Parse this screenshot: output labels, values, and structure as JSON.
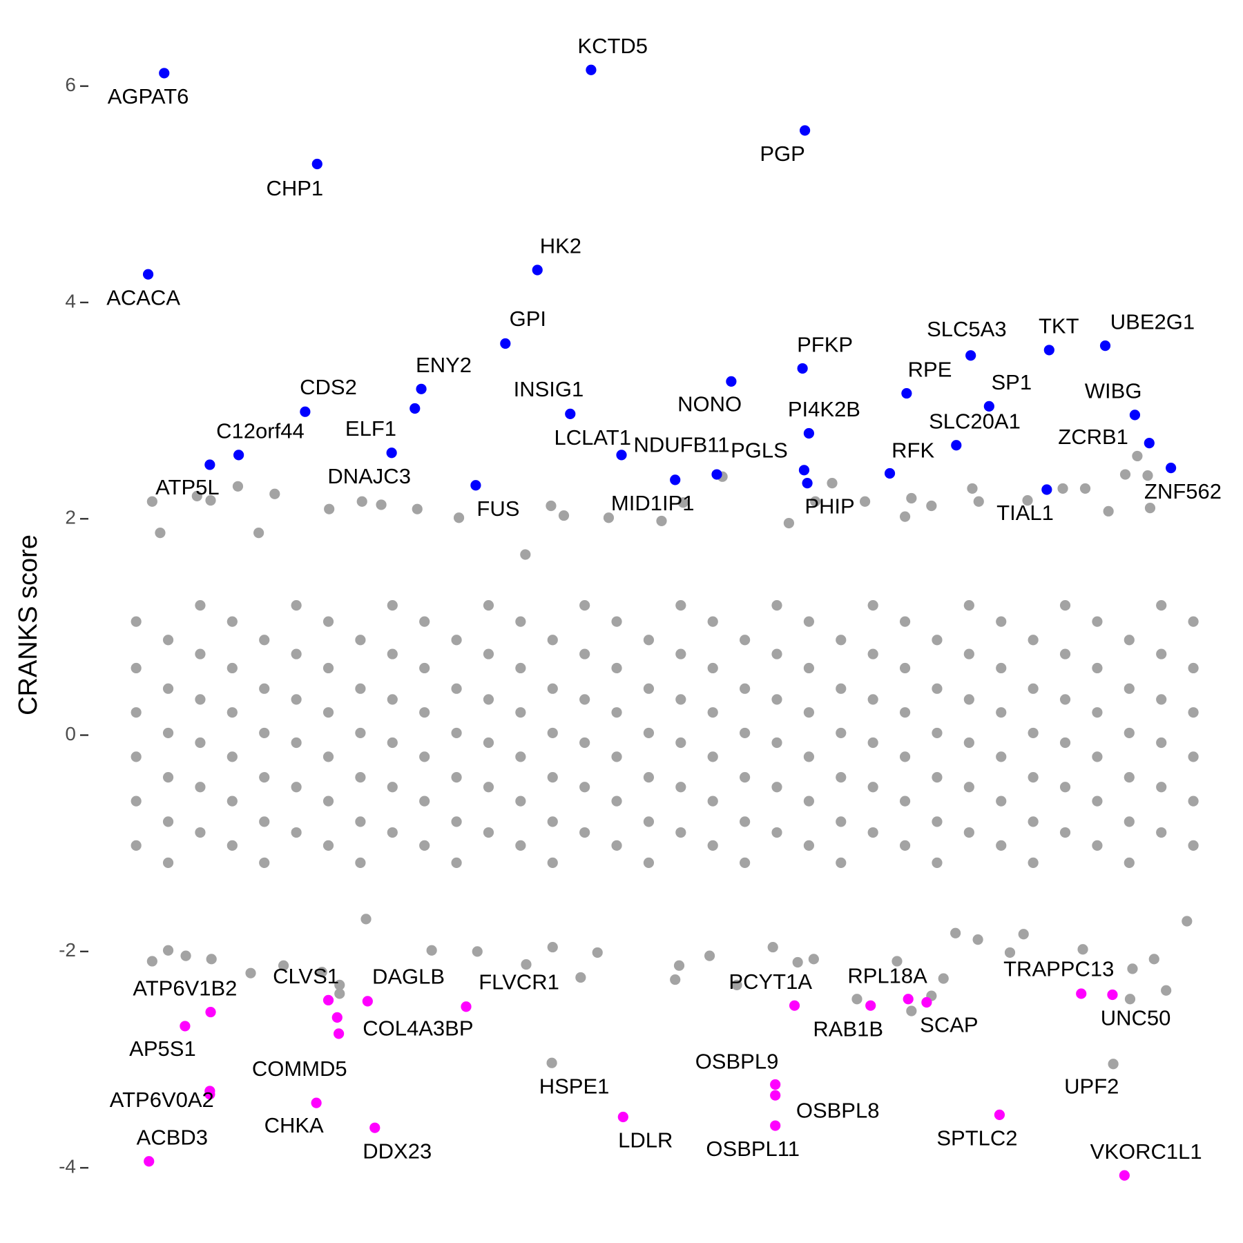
{
  "chart_data": {
    "type": "scatter",
    "y_label": "CRANKS score",
    "xlim": [
      0,
      1400
    ],
    "ylim": [
      -4.31,
      6.5
    ],
    "yticks": [
      -4,
      -2,
      0,
      2,
      4,
      6
    ],
    "series": [
      {
        "color": "#a3a3a3",
        "x": [
          20,
          20,
          20,
          20,
          20,
          20,
          60,
          60,
          60,
          60,
          60,
          60,
          100,
          100,
          100,
          100,
          100,
          100,
          140,
          140,
          140,
          140,
          140,
          140,
          180,
          180,
          180,
          180,
          180,
          180,
          220,
          220,
          220,
          220,
          220,
          220,
          260,
          260,
          260,
          260,
          260,
          260,
          300,
          300,
          300,
          300,
          300,
          300,
          340,
          340,
          340,
          340,
          340,
          340,
          380,
          380,
          380,
          380,
          380,
          380,
          420,
          420,
          420,
          420,
          420,
          420,
          460,
          460,
          460,
          460,
          460,
          460,
          500,
          500,
          500,
          500,
          500,
          500,
          540,
          540,
          540,
          540,
          540,
          540,
          580,
          580,
          580,
          580,
          580,
          580,
          620,
          620,
          620,
          620,
          620,
          620,
          660,
          660,
          660,
          660,
          660,
          660,
          700,
          700,
          700,
          700,
          700,
          700,
          740,
          740,
          740,
          740,
          740,
          740,
          780,
          780,
          780,
          780,
          780,
          780,
          820,
          820,
          820,
          820,
          820,
          820,
          860,
          860,
          860,
          860,
          860,
          860,
          900,
          900,
          900,
          900,
          900,
          900,
          940,
          940,
          940,
          940,
          940,
          940,
          980,
          980,
          980,
          980,
          980,
          980,
          1020,
          1020,
          1020,
          1020,
          1020,
          1020,
          1060,
          1060,
          1060,
          1060,
          1060,
          1060,
          1100,
          1100,
          1100,
          1100,
          1100,
          1100,
          1140,
          1140,
          1140,
          1140,
          1140,
          1140,
          1180,
          1180,
          1180,
          1180,
          1180,
          1180,
          1220,
          1220,
          1220,
          1220,
          1220,
          1220,
          1260,
          1260,
          1260,
          1260,
          1260,
          1260,
          1300,
          1300,
          1300,
          1300,
          1300,
          1300,
          1340,
          1340,
          1340,
          1340,
          1340,
          1340,
          40,
          147,
          193,
          96,
          113,
          261,
          302,
          326,
          371,
          423,
          538,
          554,
          752,
          889,
          930,
          988,
          1013,
          1064,
          1072,
          1133,
          1177,
          1205,
          1270,
          1283,
          1286,
          1255,
          1234,
          980,
          868,
          835,
          703,
          676,
          610,
          506,
          173,
          50,
          40,
          60,
          114,
          82,
          204,
          163,
          274,
          274,
          252,
          307,
          389,
          446,
          507,
          540,
          575,
          596,
          693,
          698,
          736,
          815,
          846,
          866,
          920,
          970,
          988,
          1013,
          1028,
          1071,
          1043,
          1128,
          1202,
          1261,
          1291,
          1306,
          1332,
          770,
          1111,
          1264
        ],
        "values": [
          1.05,
          0.62,
          0.21,
          -0.2,
          -0.61,
          -1.02,
          0.88,
          0.43,
          0.02,
          -0.39,
          -0.8,
          -1.18,
          1.2,
          0.75,
          0.33,
          -0.07,
          -0.48,
          -0.9,
          1.05,
          0.62,
          0.21,
          -0.2,
          -0.61,
          -1.02,
          0.88,
          0.43,
          0.02,
          -0.39,
          -0.8,
          -1.18,
          1.2,
          0.75,
          0.33,
          -0.07,
          -0.48,
          -0.9,
          1.05,
          0.62,
          0.21,
          -0.2,
          -0.61,
          -1.02,
          0.88,
          0.43,
          0.02,
          -0.39,
          -0.8,
          -1.18,
          1.2,
          0.75,
          0.33,
          -0.07,
          -0.48,
          -0.9,
          1.05,
          0.62,
          0.21,
          -0.2,
          -0.61,
          -1.02,
          0.88,
          0.43,
          0.02,
          -0.39,
          -0.8,
          -1.18,
          1.2,
          0.75,
          0.33,
          -0.07,
          -0.48,
          -0.9,
          1.05,
          0.62,
          0.21,
          -0.2,
          -0.61,
          -1.02,
          0.88,
          0.43,
          0.02,
          -0.39,
          -0.8,
          -1.18,
          1.2,
          0.75,
          0.33,
          -0.07,
          -0.48,
          -0.9,
          1.05,
          0.62,
          0.21,
          -0.2,
          -0.61,
          -1.02,
          0.88,
          0.43,
          0.02,
          -0.39,
          -0.8,
          -1.18,
          1.2,
          0.75,
          0.33,
          -0.07,
          -0.48,
          -0.9,
          1.05,
          0.62,
          0.21,
          -0.2,
          -0.61,
          -1.02,
          0.88,
          0.43,
          0.02,
          -0.39,
          -0.8,
          -1.18,
          1.2,
          0.75,
          0.33,
          -0.07,
          -0.48,
          -0.9,
          1.05,
          0.62,
          0.21,
          -0.2,
          -0.61,
          -1.02,
          0.88,
          0.43,
          0.02,
          -0.39,
          -0.8,
          -1.18,
          1.2,
          0.75,
          0.33,
          -0.07,
          -0.48,
          -0.9,
          1.05,
          0.62,
          0.21,
          -0.2,
          -0.61,
          -1.02,
          0.88,
          0.43,
          0.02,
          -0.39,
          -0.8,
          -1.18,
          1.2,
          0.75,
          0.33,
          -0.07,
          -0.48,
          -0.9,
          1.05,
          0.62,
          0.21,
          -0.2,
          -0.61,
          -1.02,
          0.88,
          0.43,
          0.02,
          -0.39,
          -0.8,
          -1.18,
          1.2,
          0.75,
          0.33,
          -0.07,
          -0.48,
          -0.9,
          1.05,
          0.62,
          0.21,
          -0.2,
          -0.61,
          -1.02,
          0.88,
          0.43,
          0.02,
          -0.39,
          -0.8,
          -1.18,
          1.2,
          0.75,
          0.33,
          -0.07,
          -0.48,
          -0.9,
          1.05,
          0.62,
          0.21,
          -0.2,
          -0.61,
          -1.02,
          2.16,
          2.3,
          2.23,
          2.21,
          2.17,
          2.09,
          2.16,
          2.13,
          2.09,
          2.01,
          2.12,
          2.03,
          2.39,
          2.33,
          2.16,
          2.19,
          2.12,
          2.28,
          2.16,
          2.17,
          2.28,
          2.28,
          2.58,
          2.4,
          2.1,
          2.41,
          2.07,
          2.02,
          2.16,
          1.96,
          2.15,
          1.98,
          2.01,
          1.67,
          1.87,
          1.87,
          -2.09,
          -1.99,
          -2.07,
          -2.04,
          -2.13,
          -2.2,
          -2.39,
          -2.31,
          -2.19,
          -1.7,
          -1.99,
          -2.0,
          -2.12,
          -1.96,
          -2.24,
          -2.01,
          -2.26,
          -2.13,
          -2.04,
          -1.96,
          -2.1,
          -2.07,
          -2.44,
          -2.09,
          -2.55,
          -2.41,
          -2.25,
          -1.89,
          -1.83,
          -1.84,
          -1.98,
          -2.44,
          -2.07,
          -2.36,
          -1.72,
          -2.31,
          -2.01,
          -2.16
        ]
      },
      {
        "color": "#a3a3a3",
        "x": [
          539,
          1240
        ],
        "values": [
          -3.03,
          -3.04
        ],
        "labels": [
          "HSPE1",
          "UPF2"
        ]
      },
      {
        "color": "#0000ff",
        "x": [
          55,
          588,
          855,
          246,
          521,
          35,
          481,
          852,
          1062,
          1160,
          1230,
          763,
          982,
          1085,
          376,
          562,
          231,
          368,
          1267,
          860,
          1044,
          1285,
          148,
          626,
          745,
          693,
          854,
          858,
          961,
          339,
          112,
          444,
          1157,
          1312
        ],
        "values": [
          6.12,
          6.15,
          5.59,
          5.28,
          4.3,
          4.26,
          3.62,
          3.39,
          3.51,
          3.56,
          3.6,
          3.27,
          3.16,
          3.04,
          3.2,
          2.97,
          2.99,
          3.02,
          2.96,
          2.79,
          2.68,
          2.7,
          2.59,
          2.59,
          2.41,
          2.36,
          2.45,
          2.33,
          2.42,
          2.61,
          2.5,
          2.31,
          2.27,
          2.47
        ],
        "labels": [
          "AGPAT6",
          "KCTD5",
          "PGP",
          "CHP1",
          "HK2",
          "ACACA",
          "GPI",
          "PFKP",
          "SLC5A3",
          "TKT",
          "UBE2G1",
          "NONO",
          "RPE",
          "SP1",
          "ENY2",
          "INSIG1",
          "CDS2",
          "ELF1",
          "WIBG",
          "PI4K2B",
          "SLC20A1",
          "ZCRB1",
          "C12orf44",
          "LCLAT1",
          "NDUFB11",
          "MID1IP1",
          "PGLS",
          "PHIP",
          "RFK",
          "DNAJC3",
          "ATP5L",
          "FUS",
          "TIAL1",
          "ZNF562"
        ]
      },
      {
        "color": "#ff00ff",
        "x": [
          113,
          81,
          260,
          309,
          273,
          432,
          112,
          112,
          245,
          36,
          318,
          842,
          984,
          937,
          1007,
          1200,
          1239,
          818,
          818,
          818,
          628,
          1098,
          1254,
          271
        ],
        "values": [
          -2.56,
          -2.69,
          -2.45,
          -2.46,
          -2.76,
          -2.51,
          -3.32,
          -3.29,
          -3.4,
          -3.94,
          -3.63,
          -2.5,
          -2.44,
          -2.5,
          -2.47,
          -2.39,
          -2.4,
          -3.23,
          -3.33,
          -3.61,
          -3.53,
          -3.51,
          -4.07,
          -2.61
        ],
        "labels": [
          "ATP6V1B2",
          "AP5S1",
          "CLVS1",
          "DAGLB",
          "COL4A3BP",
          "FLVCR1",
          "ATP6V0A2",
          "COMMD5",
          "CHKA",
          "ACBD3",
          "DDX23",
          "PCYT1A",
          "RPL18A",
          "RAB1B",
          "SCAP",
          "TRAPPC13",
          "UNC50",
          "OSBPL9",
          "OSBPL8",
          "OSBPL11",
          "LDLR",
          "SPTLC2",
          "VKORC1L1",
          null
        ]
      }
    ]
  }
}
